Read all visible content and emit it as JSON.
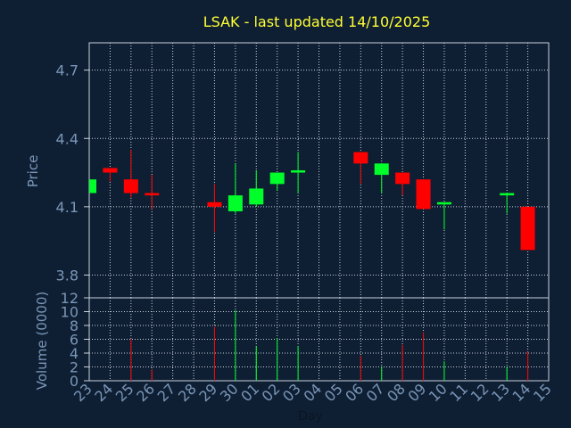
{
  "chart_data": {
    "type": "candlestick",
    "title": "LSAK - last updated 14/10/2025",
    "price_axis": {
      "label": "Price",
      "ylim": [
        3.7,
        4.82
      ],
      "ticks": [
        "4.7",
        "4.4",
        "4.1",
        "3.8"
      ]
    },
    "volume_axis": {
      "label": "Volume (0000)",
      "ylim": [
        0,
        12
      ],
      "ticks": [
        "12",
        "10",
        "8",
        "6",
        "4",
        "2",
        "0"
      ]
    },
    "xlabel": "Day",
    "categories": [
      "23",
      "24",
      "25",
      "26",
      "27",
      "28",
      "29",
      "30",
      "01",
      "02",
      "03",
      "04",
      "05",
      "06",
      "07",
      "08",
      "09",
      "10",
      "11",
      "12",
      "13",
      "14",
      "15"
    ],
    "candles": [
      {
        "day": "23",
        "open": 4.16,
        "close": 4.22,
        "high": 4.22,
        "low": 4.16,
        "direction": "up"
      },
      {
        "day": "24",
        "open": 4.27,
        "close": 4.25,
        "high": 4.27,
        "low": 4.21,
        "direction": "down"
      },
      {
        "day": "25",
        "open": 4.22,
        "close": 4.16,
        "high": 4.35,
        "low": 4.14,
        "direction": "down"
      },
      {
        "day": "26",
        "open": 4.16,
        "close": 4.15,
        "high": 4.24,
        "low": 4.09,
        "direction": "down"
      },
      {
        "day": "29",
        "open": 4.12,
        "close": 4.1,
        "high": 4.2,
        "low": 3.99,
        "direction": "down"
      },
      {
        "day": "30",
        "open": 4.08,
        "close": 4.15,
        "high": 4.29,
        "low": 4.07,
        "direction": "up"
      },
      {
        "day": "01",
        "open": 4.11,
        "close": 4.18,
        "high": 4.26,
        "low": 4.1,
        "direction": "up"
      },
      {
        "day": "02",
        "open": 4.2,
        "close": 4.25,
        "high": 4.25,
        "low": 4.17,
        "direction": "up"
      },
      {
        "day": "03",
        "open": 4.25,
        "close": 4.26,
        "high": 4.34,
        "low": 4.16,
        "direction": "up"
      },
      {
        "day": "06",
        "open": 4.34,
        "close": 4.29,
        "high": 4.34,
        "low": 4.2,
        "direction": "down"
      },
      {
        "day": "07",
        "open": 4.24,
        "close": 4.29,
        "high": 4.29,
        "low": 4.16,
        "direction": "up"
      },
      {
        "day": "08",
        "open": 4.25,
        "close": 4.2,
        "high": 4.25,
        "low": 4.15,
        "direction": "down"
      },
      {
        "day": "09",
        "open": 4.22,
        "close": 4.09,
        "high": 4.22,
        "low": 4.09,
        "direction": "down"
      },
      {
        "day": "10",
        "open": 4.11,
        "close": 4.12,
        "high": 4.12,
        "low": 4.0,
        "direction": "up"
      },
      {
        "day": "13",
        "open": 4.15,
        "close": 4.16,
        "high": 4.16,
        "low": 4.07,
        "direction": "up"
      },
      {
        "day": "14",
        "open": 4.1,
        "close": 3.91,
        "high": 4.1,
        "low": 3.91,
        "direction": "down"
      }
    ],
    "volumes": [
      {
        "day": "23",
        "value": 0,
        "direction": "up"
      },
      {
        "day": "24",
        "value": 0,
        "direction": "down"
      },
      {
        "day": "25",
        "value": 6,
        "direction": "down"
      },
      {
        "day": "26",
        "value": 1.6,
        "direction": "down"
      },
      {
        "day": "29",
        "value": 7.8,
        "direction": "down"
      },
      {
        "day": "30",
        "value": 10.2,
        "direction": "up"
      },
      {
        "day": "01",
        "value": 5,
        "direction": "up"
      },
      {
        "day": "02",
        "value": 6.2,
        "direction": "up"
      },
      {
        "day": "03",
        "value": 5,
        "direction": "up"
      },
      {
        "day": "06",
        "value": 3.6,
        "direction": "down"
      },
      {
        "day": "07",
        "value": 2,
        "direction": "up"
      },
      {
        "day": "08",
        "value": 5.2,
        "direction": "down"
      },
      {
        "day": "09",
        "value": 7,
        "direction": "down"
      },
      {
        "day": "10",
        "value": 2.8,
        "direction": "up"
      },
      {
        "day": "13",
        "value": 2,
        "direction": "up"
      },
      {
        "day": "14",
        "value": 4.2,
        "direction": "down"
      }
    ],
    "colors": {
      "up": "#00ff2a",
      "down": "#ff0000",
      "background": "#0f1f33",
      "grid": "#c8d0dc",
      "axis_text": "#7a96b8",
      "title": "#ffff33"
    },
    "grid": true
  }
}
